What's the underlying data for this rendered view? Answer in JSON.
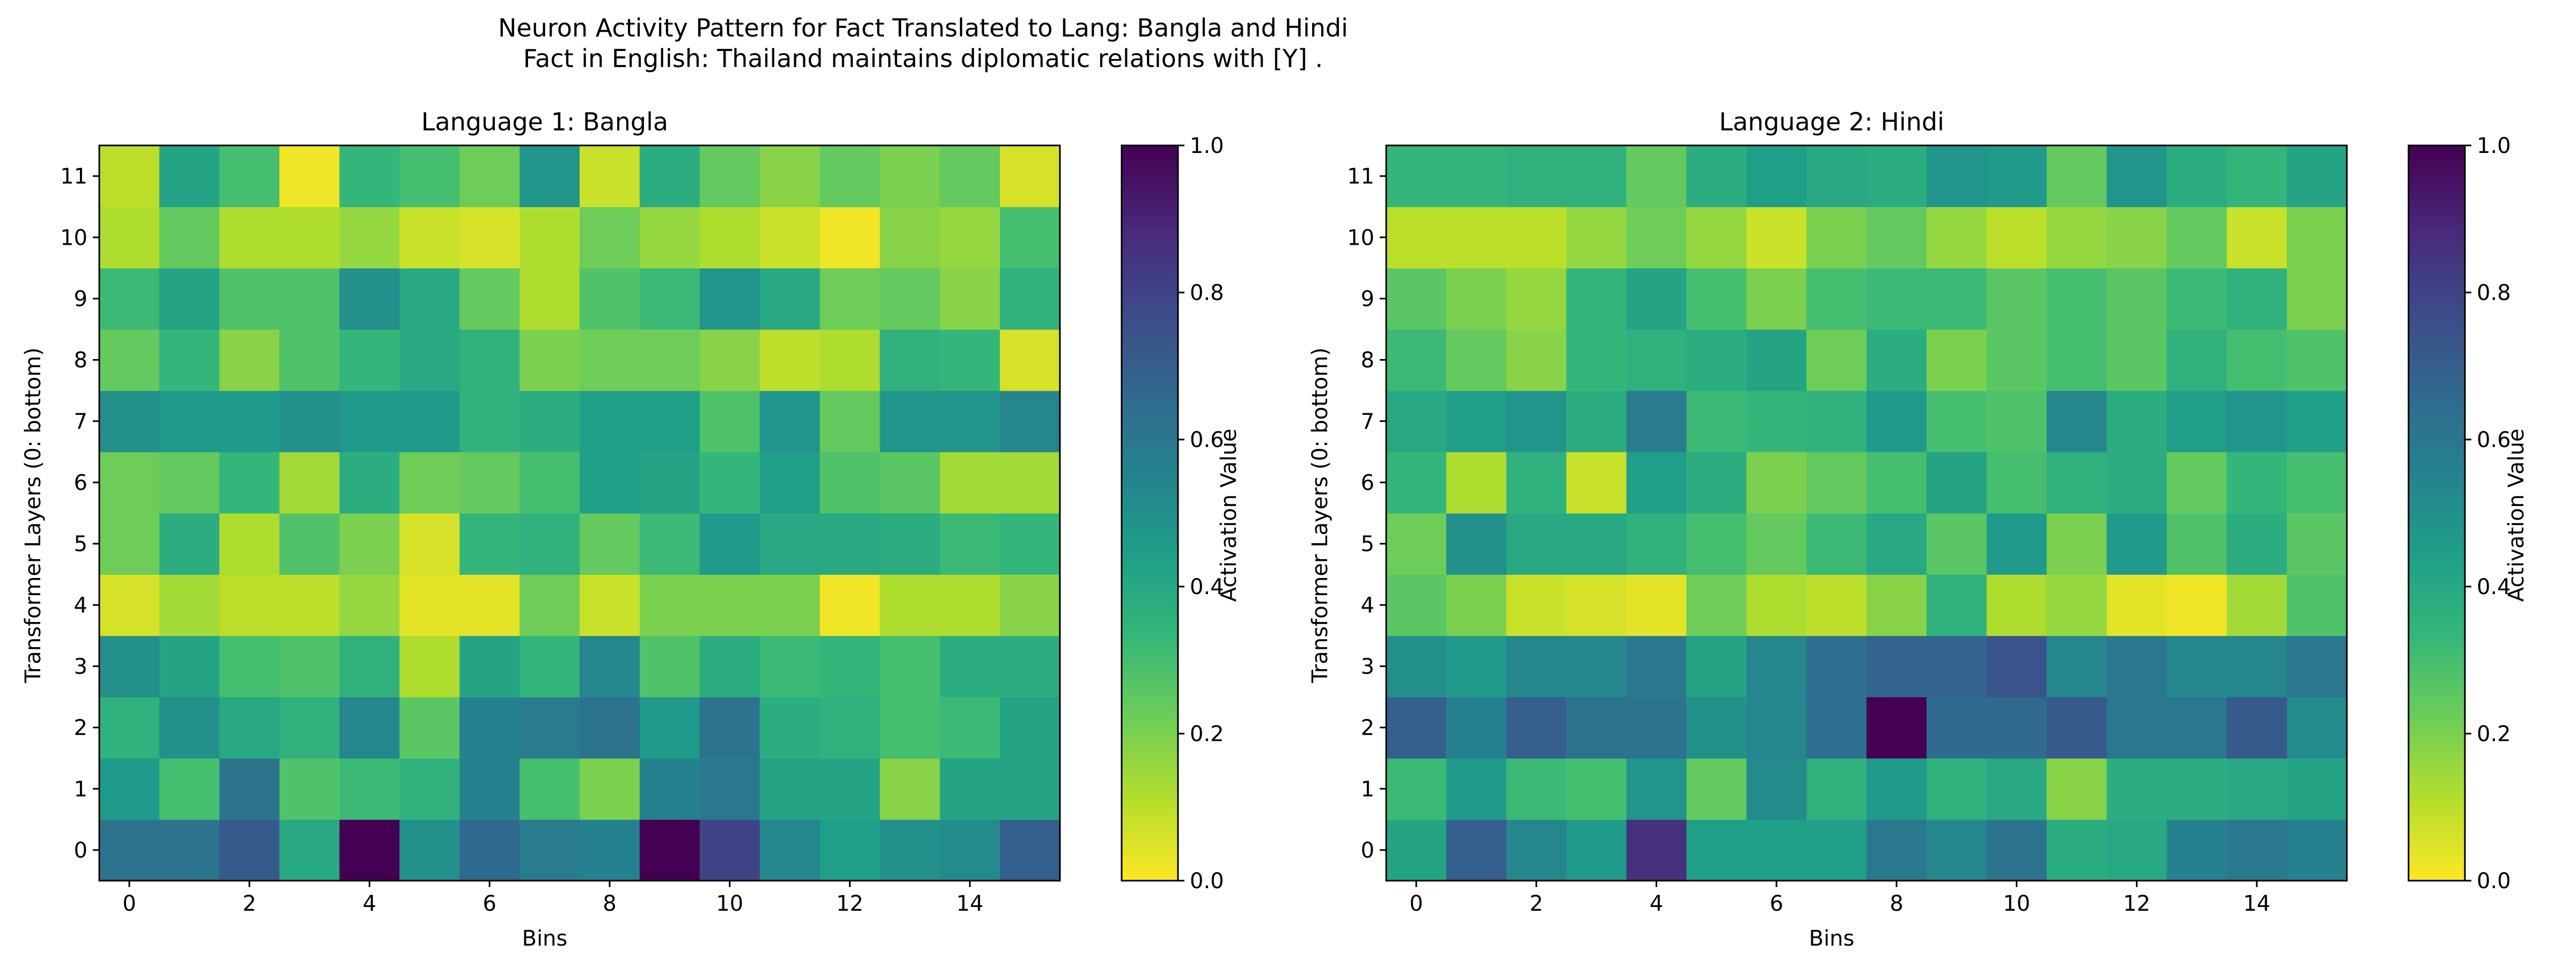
{
  "figure": {
    "title_line1": "Neuron Activity Pattern for Fact Translated to Lang: Bangla and Hindi",
    "title_line2": "Fact in English: Thailand maintains diplomatic relations with [Y] ."
  },
  "chart_data": [
    {
      "type": "heatmap",
      "title": "Language 1: Bangla",
      "xlabel": "Bins",
      "ylabel": "Transformer Layers (0: bottom)",
      "x_ticks": [
        "0",
        "2",
        "4",
        "6",
        "8",
        "10",
        "12",
        "14"
      ],
      "y_ticks": [
        "0",
        "1",
        "2",
        "3",
        "4",
        "5",
        "6",
        "7",
        "8",
        "9",
        "10",
        "11"
      ],
      "n_bins": 16,
      "n_layers": 12,
      "colormap": "viridis_r",
      "vmin": 0.0,
      "vmax": 1.0,
      "colorbar_label": "Activation Value",
      "colorbar_ticks": [
        "0.0",
        "0.2",
        "0.4",
        "0.6",
        "0.8",
        "1.0"
      ],
      "values": [
        [
          0.62,
          0.62,
          0.72,
          0.4,
          1.0,
          0.5,
          0.66,
          0.58,
          0.56,
          1.0,
          0.8,
          0.54,
          0.44,
          0.5,
          0.52,
          0.7
        ],
        [
          0.46,
          0.3,
          0.62,
          0.28,
          0.32,
          0.36,
          0.56,
          0.3,
          0.2,
          0.56,
          0.6,
          0.42,
          0.42,
          0.18,
          0.42,
          0.42
        ],
        [
          0.36,
          0.5,
          0.4,
          0.36,
          0.54,
          0.26,
          0.56,
          0.58,
          0.62,
          0.46,
          0.62,
          0.38,
          0.36,
          0.3,
          0.32,
          0.42
        ],
        [
          0.5,
          0.42,
          0.3,
          0.28,
          0.36,
          0.12,
          0.42,
          0.34,
          0.54,
          0.28,
          0.38,
          0.32,
          0.34,
          0.3,
          0.38,
          0.38
        ],
        [
          0.06,
          0.14,
          0.1,
          0.1,
          0.16,
          0.04,
          0.04,
          0.22,
          0.08,
          0.2,
          0.2,
          0.2,
          0.02,
          0.12,
          0.12,
          0.18
        ],
        [
          0.22,
          0.38,
          0.12,
          0.28,
          0.2,
          0.06,
          0.34,
          0.36,
          0.24,
          0.32,
          0.46,
          0.4,
          0.4,
          0.38,
          0.32,
          0.34
        ],
        [
          0.22,
          0.24,
          0.34,
          0.14,
          0.38,
          0.22,
          0.24,
          0.3,
          0.44,
          0.42,
          0.34,
          0.44,
          0.28,
          0.26,
          0.14,
          0.14
        ],
        [
          0.5,
          0.46,
          0.46,
          0.5,
          0.46,
          0.46,
          0.36,
          0.38,
          0.44,
          0.44,
          0.28,
          0.48,
          0.24,
          0.48,
          0.48,
          0.54
        ],
        [
          0.24,
          0.34,
          0.18,
          0.28,
          0.34,
          0.4,
          0.36,
          0.2,
          0.22,
          0.22,
          0.18,
          0.1,
          0.12,
          0.36,
          0.34,
          0.06
        ],
        [
          0.32,
          0.42,
          0.28,
          0.28,
          0.5,
          0.4,
          0.24,
          0.12,
          0.28,
          0.32,
          0.48,
          0.4,
          0.22,
          0.24,
          0.18,
          0.36
        ],
        [
          0.12,
          0.24,
          0.12,
          0.12,
          0.16,
          0.08,
          0.06,
          0.12,
          0.22,
          0.16,
          0.12,
          0.08,
          0.02,
          0.18,
          0.16,
          0.3
        ],
        [
          0.1,
          0.42,
          0.3,
          0.02,
          0.34,
          0.3,
          0.22,
          0.48,
          0.08,
          0.38,
          0.24,
          0.18,
          0.24,
          0.2,
          0.24,
          0.06
        ]
      ]
    },
    {
      "type": "heatmap",
      "title": "Language 2: Hindi",
      "xlabel": "Bins",
      "ylabel": "Transformer Layers (0: bottom)",
      "x_ticks": [
        "0",
        "2",
        "4",
        "6",
        "8",
        "10",
        "12",
        "14"
      ],
      "y_ticks": [
        "0",
        "1",
        "2",
        "3",
        "4",
        "5",
        "6",
        "7",
        "8",
        "9",
        "10",
        "11"
      ],
      "n_bins": 16,
      "n_layers": 12,
      "colormap": "viridis_r",
      "vmin": 0.0,
      "vmax": 1.0,
      "colorbar_label": "Activation Value",
      "colorbar_ticks": [
        "0.0",
        "0.2",
        "0.4",
        "0.6",
        "0.8",
        "1.0"
      ],
      "values": [
        [
          0.42,
          0.7,
          0.54,
          0.46,
          0.86,
          0.44,
          0.44,
          0.44,
          0.6,
          0.54,
          0.62,
          0.38,
          0.4,
          0.56,
          0.6,
          0.56
        ],
        [
          0.32,
          0.46,
          0.32,
          0.3,
          0.48,
          0.24,
          0.52,
          0.36,
          0.46,
          0.36,
          0.4,
          0.18,
          0.38,
          0.38,
          0.4,
          0.42
        ],
        [
          0.7,
          0.56,
          0.7,
          0.62,
          0.62,
          0.5,
          0.54,
          0.64,
          1.0,
          0.66,
          0.66,
          0.72,
          0.6,
          0.6,
          0.72,
          0.52
        ],
        [
          0.5,
          0.46,
          0.54,
          0.54,
          0.6,
          0.42,
          0.54,
          0.64,
          0.68,
          0.68,
          0.74,
          0.54,
          0.6,
          0.54,
          0.54,
          0.6
        ],
        [
          0.26,
          0.2,
          0.08,
          0.06,
          0.04,
          0.22,
          0.12,
          0.1,
          0.18,
          0.36,
          0.12,
          0.16,
          0.04,
          0.02,
          0.14,
          0.28
        ],
        [
          0.22,
          0.5,
          0.4,
          0.4,
          0.36,
          0.3,
          0.24,
          0.32,
          0.4,
          0.26,
          0.46,
          0.2,
          0.46,
          0.28,
          0.38,
          0.26
        ],
        [
          0.34,
          0.12,
          0.36,
          0.08,
          0.44,
          0.38,
          0.2,
          0.24,
          0.3,
          0.42,
          0.3,
          0.36,
          0.38,
          0.24,
          0.34,
          0.3
        ],
        [
          0.4,
          0.44,
          0.48,
          0.38,
          0.58,
          0.32,
          0.34,
          0.36,
          0.46,
          0.3,
          0.28,
          0.54,
          0.38,
          0.44,
          0.48,
          0.44
        ],
        [
          0.32,
          0.24,
          0.18,
          0.34,
          0.36,
          0.38,
          0.42,
          0.22,
          0.38,
          0.2,
          0.26,
          0.3,
          0.26,
          0.36,
          0.3,
          0.28
        ],
        [
          0.26,
          0.2,
          0.16,
          0.34,
          0.42,
          0.3,
          0.2,
          0.3,
          0.32,
          0.32,
          0.26,
          0.3,
          0.26,
          0.32,
          0.36,
          0.2
        ],
        [
          0.1,
          0.1,
          0.1,
          0.16,
          0.22,
          0.16,
          0.08,
          0.2,
          0.24,
          0.16,
          0.1,
          0.16,
          0.18,
          0.24,
          0.08,
          0.2
        ],
        [
          0.34,
          0.34,
          0.36,
          0.36,
          0.24,
          0.38,
          0.44,
          0.4,
          0.38,
          0.48,
          0.46,
          0.24,
          0.48,
          0.38,
          0.34,
          0.42
        ]
      ]
    }
  ]
}
